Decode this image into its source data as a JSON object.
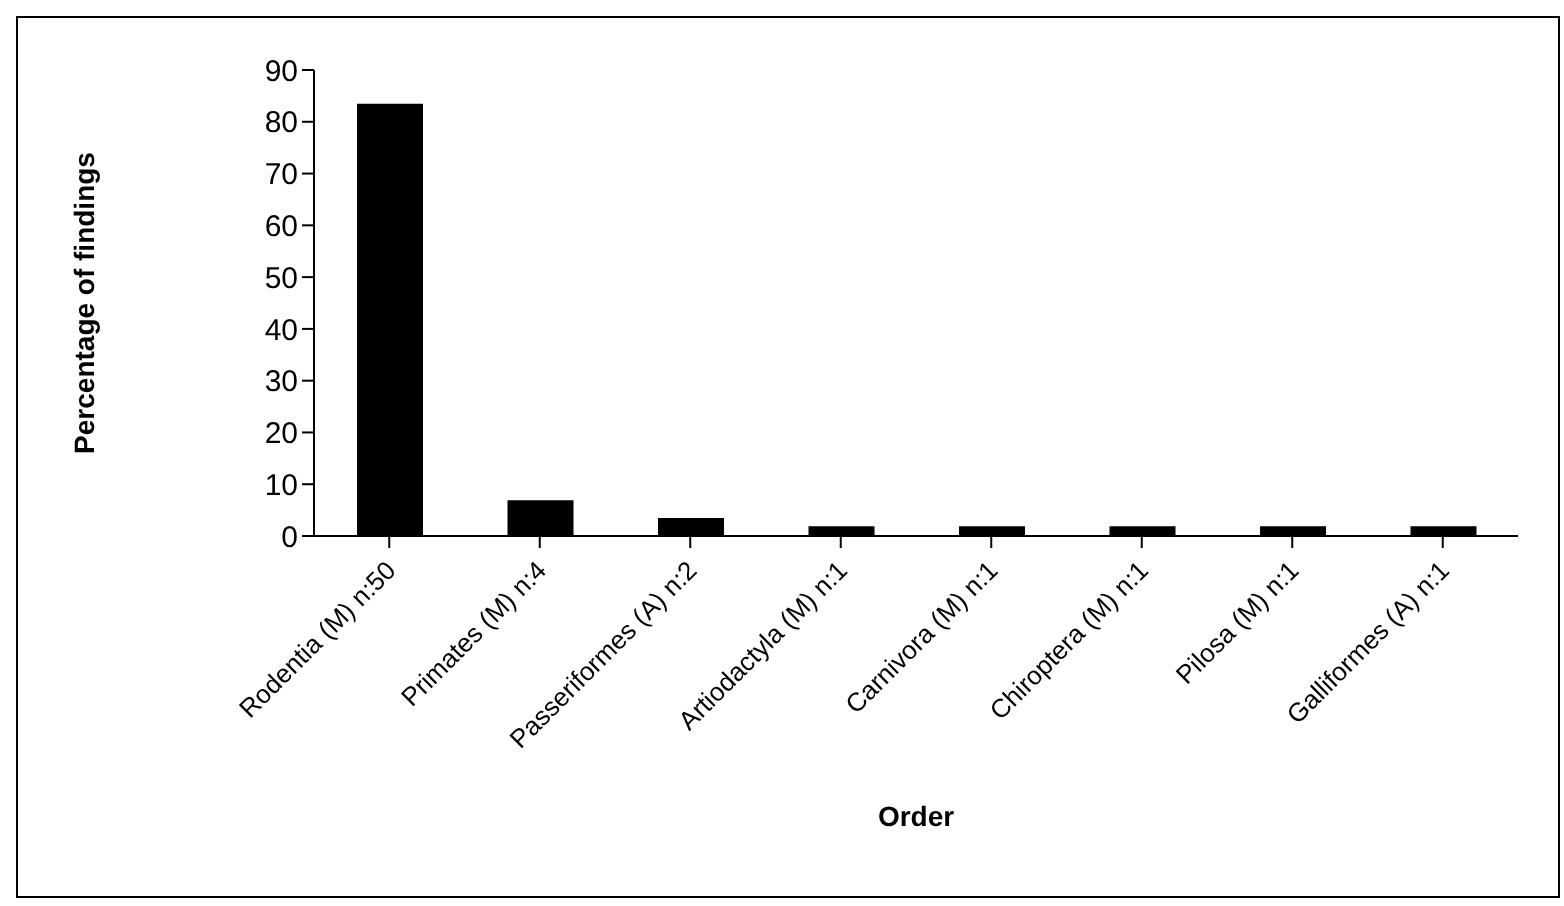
{
  "chart_data": {
    "type": "bar",
    "categories": [
      "Rodentia (M) n:50",
      "Primates (M) n:4",
      "Passeriformes (A) n:2",
      "Artiodactyla (M) n:1",
      "Carnivora (M) n:1",
      "Chiroptera (M) n:1",
      "Pilosa (M) n:1",
      "Galliformes (A) n:1"
    ],
    "values": [
      83.3,
      6.7,
      3.3,
      1.7,
      1.7,
      1.7,
      1.7,
      1.7
    ],
    "color": "#000000",
    "xlabel": "Order",
    "ylabel": "Percentage of findings",
    "ylim": [
      0,
      90
    ],
    "yticks": [
      0,
      10,
      20,
      30,
      40,
      50,
      60,
      70,
      80,
      90
    ],
    "grid": false
  }
}
